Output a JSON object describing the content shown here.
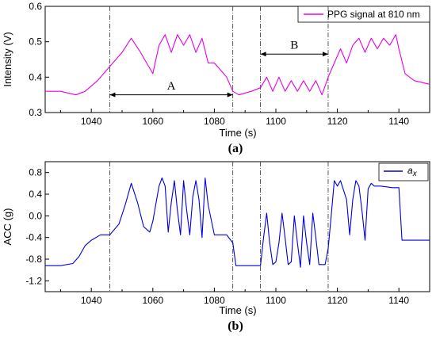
{
  "chart_data": [
    {
      "type": "line",
      "panel_label": "(a)",
      "xlabel": "Time (s)",
      "ylabel": "Intensity (V)",
      "xlim": [
        1025,
        1150
      ],
      "ylim": [
        0.3,
        0.6
      ],
      "xticks": [
        "1040",
        "1060",
        "1080",
        "1100",
        "1120",
        "1140"
      ],
      "yticks": [
        "0.3",
        "0.4",
        "0.5",
        "0.6"
      ],
      "legend_position": "top-right",
      "color": "#e600e6",
      "series": [
        {
          "name": "PPG signal at 810 nm",
          "x": [
            1025,
            1030,
            1035,
            1038,
            1042,
            1046,
            1050,
            1053,
            1056,
            1058,
            1060,
            1062,
            1064,
            1066,
            1068,
            1070,
            1072,
            1074,
            1076,
            1078,
            1080,
            1082,
            1084,
            1086,
            1088,
            1092,
            1095,
            1097,
            1099,
            1101,
            1103,
            1105,
            1107,
            1109,
            1111,
            1113,
            1115,
            1117,
            1119,
            1121,
            1123,
            1125,
            1127,
            1129,
            1131,
            1133,
            1135,
            1137,
            1139,
            1140,
            1142,
            1145,
            1150
          ],
          "values": [
            0.36,
            0.36,
            0.35,
            0.36,
            0.39,
            0.43,
            0.47,
            0.51,
            0.47,
            0.44,
            0.41,
            0.49,
            0.52,
            0.47,
            0.52,
            0.49,
            0.52,
            0.47,
            0.51,
            0.44,
            0.44,
            0.42,
            0.4,
            0.36,
            0.35,
            0.36,
            0.37,
            0.4,
            0.36,
            0.4,
            0.36,
            0.39,
            0.36,
            0.39,
            0.36,
            0.39,
            0.35,
            0.4,
            0.44,
            0.48,
            0.44,
            0.49,
            0.51,
            0.47,
            0.51,
            0.48,
            0.51,
            0.49,
            0.52,
            0.48,
            0.41,
            0.39,
            0.38
          ]
        }
      ],
      "markers_x": [
        1046,
        1086,
        1095,
        1117
      ],
      "annotations": [
        {
          "text": "A",
          "x_from": 1046,
          "x_to": 1086,
          "y_arrow": 0.35,
          "y_text": 0.365
        },
        {
          "text": "B",
          "x_from": 1095,
          "x_to": 1117,
          "y_arrow": 0.465,
          "y_text": 0.48
        }
      ]
    },
    {
      "type": "line",
      "panel_label": "(b)",
      "xlabel": "Time (s)",
      "ylabel": "ACC (g)",
      "xlim": [
        1025,
        1150
      ],
      "ylim": [
        -1.4,
        1.0
      ],
      "xticks": [
        "1040",
        "1060",
        "1080",
        "1100",
        "1120",
        "1140"
      ],
      "yticks": [
        "-1.2",
        "-0.8",
        "-0.4",
        "0.0",
        "0.4",
        "0.8"
      ],
      "legend_position": "top-right",
      "color": "#0000dd",
      "series": [
        {
          "name": "a",
          "subscript": "x",
          "x": [
            1025,
            1030,
            1034,
            1036,
            1038,
            1040,
            1043,
            1046,
            1049,
            1051,
            1053,
            1055,
            1057,
            1059,
            1060,
            1062,
            1063,
            1064,
            1065,
            1066,
            1067,
            1068,
            1069,
            1070,
            1071,
            1072,
            1073,
            1074,
            1075,
            1076,
            1077,
            1078,
            1080,
            1084,
            1086,
            1087,
            1092,
            1095,
            1096,
            1097,
            1098,
            1099,
            1100,
            1101,
            1102,
            1103,
            1104,
            1105,
            1106,
            1107,
            1108,
            1109,
            1110,
            1111,
            1112,
            1113,
            1114,
            1116,
            1117,
            1118,
            1119,
            1120,
            1121,
            1123,
            1124,
            1125,
            1126,
            1127,
            1128,
            1129,
            1130,
            1131,
            1132,
            1134,
            1138,
            1140,
            1141,
            1143,
            1150
          ],
          "values": [
            -0.92,
            -0.92,
            -0.88,
            -0.75,
            -0.55,
            -0.45,
            -0.35,
            -0.35,
            -0.15,
            0.2,
            0.6,
            0.25,
            -0.2,
            -0.3,
            -0.1,
            0.55,
            0.7,
            0.55,
            -0.3,
            0.25,
            0.65,
            0.1,
            -0.35,
            0.65,
            0.1,
            -0.35,
            0.35,
            0.65,
            0.3,
            -0.4,
            0.7,
            0.2,
            -0.35,
            -0.35,
            -0.5,
            -0.92,
            -0.92,
            -0.92,
            -0.4,
            0.05,
            -0.5,
            -0.9,
            -0.85,
            -0.5,
            0.05,
            -0.4,
            -0.9,
            -0.85,
            0.0,
            -0.5,
            -0.95,
            0.0,
            -0.5,
            -0.9,
            0.05,
            -0.4,
            -0.9,
            -0.9,
            -0.6,
            0.0,
            0.65,
            0.55,
            0.65,
            0.3,
            -0.35,
            0.3,
            0.65,
            0.55,
            0.1,
            -0.45,
            0.5,
            0.6,
            0.55,
            0.55,
            0.52,
            0.52,
            -0.45,
            -0.45,
            -0.45
          ]
        }
      ],
      "markers_x": [
        1046,
        1086,
        1095,
        1117
      ],
      "annotations": []
    }
  ]
}
